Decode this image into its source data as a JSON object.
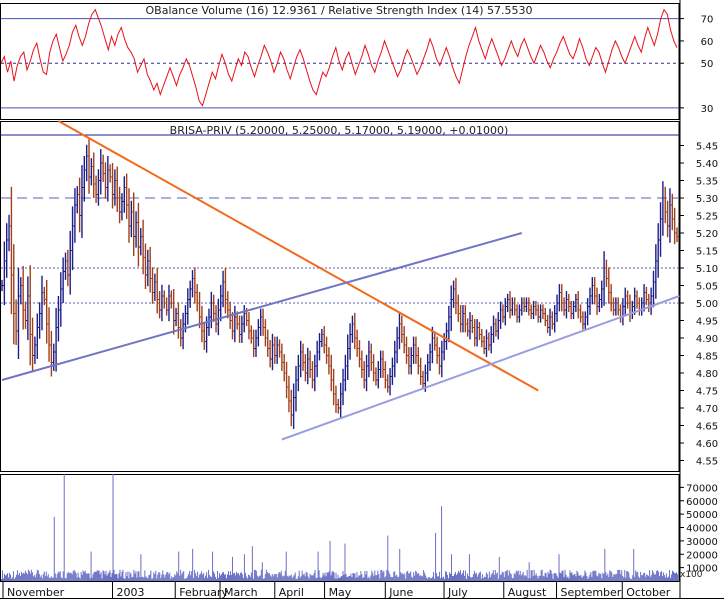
{
  "chart_data": [
    {
      "type": "line",
      "title": "OBalance Volume (16) 12.9361 / Relative Strength Index (14) 57.5530",
      "ylim": [
        25,
        77
      ],
      "yticks": [
        30,
        50,
        60,
        70
      ],
      "reference_lines": [
        {
          "y": 70,
          "style": "solid"
        },
        {
          "y": 50,
          "style": "dashed"
        },
        {
          "y": 30,
          "style": "solid"
        }
      ],
      "series": [
        {
          "color": "#e8101a",
          "values": [
            50,
            53,
            46,
            51,
            42,
            49,
            53,
            55,
            47,
            51,
            56,
            59,
            52,
            46,
            45,
            55,
            60,
            63,
            57,
            51,
            54,
            58,
            64,
            67,
            62,
            58,
            62,
            68,
            72,
            74,
            70,
            66,
            61,
            56,
            62,
            58,
            63,
            66,
            61,
            57,
            55,
            52,
            46,
            49,
            52,
            45,
            42,
            38,
            41,
            36,
            40,
            44,
            48,
            44,
            40,
            45,
            48,
            52,
            49,
            44,
            39,
            33,
            31,
            36,
            41,
            46,
            43,
            49,
            54,
            50,
            45,
            42,
            47,
            52,
            49,
            55,
            53,
            48,
            44,
            49,
            53,
            58,
            55,
            51,
            46,
            50,
            55,
            52,
            47,
            43,
            48,
            53,
            56,
            52,
            47,
            42,
            38,
            36,
            41,
            46,
            44,
            48,
            53,
            57,
            51,
            47,
            52,
            55,
            50,
            45,
            49,
            53,
            58,
            54,
            49,
            46,
            51,
            55,
            60,
            56,
            52,
            48,
            44,
            47,
            52,
            56,
            53,
            49,
            45,
            48,
            52,
            56,
            61,
            57,
            52,
            49,
            53,
            57,
            53,
            48,
            44,
            41,
            47,
            53,
            58,
            62,
            66,
            60,
            56,
            52,
            57,
            61,
            57,
            53,
            49,
            52,
            56,
            60,
            56,
            53,
            58,
            61,
            57,
            53,
            50,
            54,
            58,
            55,
            51,
            48,
            52,
            55,
            59,
            62,
            58,
            54,
            52,
            56,
            61,
            57,
            52,
            49,
            53,
            57,
            55,
            50,
            46,
            51,
            56,
            60,
            57,
            53,
            50,
            54,
            58,
            62,
            58,
            55,
            61,
            66,
            62,
            58,
            63,
            70,
            74,
            72,
            65,
            60,
            57
          ]
        }
      ]
    },
    {
      "type": "candlestick",
      "title": "BRISA-PRIV (5.20000, 5.25000, 5.17000, 5.19000, +0.01000)",
      "ylim": [
        4.52,
        5.52
      ],
      "yticks": [
        4.55,
        4.6,
        4.65,
        4.7,
        4.75,
        4.8,
        4.85,
        4.9,
        4.95,
        5.0,
        5.05,
        5.1,
        5.15,
        5.2,
        5.25,
        5.3,
        5.35,
        5.4,
        5.45
      ],
      "reference_lines": [
        {
          "y": 5.3,
          "style": "dashed"
        },
        {
          "y": 5.1,
          "style": "dotted"
        },
        {
          "y": 5.0,
          "style": "dotted"
        }
      ],
      "trendlines": [
        {
          "color": "#f26b1d",
          "from": {
            "bar": 24,
            "price": 5.52
          },
          "to": {
            "bar": 228,
            "price": 4.75
          }
        },
        {
          "color": "#6f74c4",
          "from": {
            "bar": 0,
            "price": 4.78
          },
          "to": {
            "bar": 221,
            "price": 5.2
          }
        },
        {
          "color": "#9a9ee0",
          "from": {
            "bar": 119,
            "price": 4.61
          },
          "to": {
            "bar": 288,
            "price": 5.02
          }
        }
      ],
      "colors": {
        "up": "#1c1f8a",
        "down": "#a0401b"
      },
      "closes": [
        5.05,
        5.12,
        5.18,
        5.22,
        5.08,
        4.97,
        4.92,
        5.02,
        5.05,
        4.98,
        4.95,
        5.02,
        4.91,
        4.85,
        4.88,
        4.93,
        4.97,
        5.03,
        5.01,
        4.94,
        4.88,
        4.83,
        4.86,
        4.93,
        4.98,
        5.04,
        5.09,
        5.12,
        5.08,
        5.15,
        5.22,
        5.28,
        5.31,
        5.25,
        5.33,
        5.38,
        5.42,
        5.36,
        5.39,
        5.34,
        5.31,
        5.35,
        5.4,
        5.37,
        5.33,
        5.38,
        5.36,
        5.31,
        5.35,
        5.3,
        5.26,
        5.29,
        5.33,
        5.28,
        5.22,
        5.26,
        5.19,
        5.23,
        5.16,
        5.19,
        5.13,
        5.08,
        5.12,
        5.07,
        5.03,
        5.06,
        5.01,
        4.98,
        5.02,
        5.0,
        4.98,
        5.02,
        5.0,
        4.95,
        4.97,
        4.93,
        4.9,
        4.94,
        4.97,
        5.01,
        5.04,
        5.07,
        5.03,
        5.0,
        4.96,
        4.92,
        4.89,
        4.93,
        4.96,
        5.0,
        4.97,
        4.94,
        4.98,
        5.02,
        5.06,
        5.01,
        4.98,
        4.95,
        4.92,
        4.96,
        4.94,
        4.91,
        4.94,
        4.97,
        4.95,
        4.92,
        4.9,
        4.87,
        4.9,
        4.93,
        4.96,
        4.93,
        4.9,
        4.87,
        4.84,
        4.88,
        4.85,
        4.88,
        4.86,
        4.83,
        4.8,
        4.76,
        4.72,
        4.68,
        4.73,
        4.78,
        4.82,
        4.86,
        4.83,
        4.8,
        4.84,
        4.81,
        4.78,
        4.82,
        4.86,
        4.89,
        4.91,
        4.88,
        4.85,
        4.82,
        4.78,
        4.74,
        4.71,
        4.7,
        4.74,
        4.78,
        4.82,
        4.87,
        4.91,
        4.94,
        4.9,
        4.87,
        4.84,
        4.81,
        4.78,
        4.82,
        4.86,
        4.83,
        4.8,
        4.78,
        4.81,
        4.84,
        4.81,
        4.78,
        4.76,
        4.79,
        4.82,
        4.86,
        4.9,
        4.94,
        4.91,
        4.88,
        4.85,
        4.82,
        4.85,
        4.88,
        4.85,
        4.82,
        4.79,
        4.77,
        4.8,
        4.83,
        4.86,
        4.9,
        4.88,
        4.85,
        4.82,
        4.86,
        4.89,
        4.92,
        4.96,
        5.01,
        5.04,
        5.0,
        4.97,
        4.94,
        4.97,
        4.94,
        4.92,
        4.95,
        4.93,
        4.9,
        4.93,
        4.91,
        4.89,
        4.87,
        4.9,
        4.88,
        4.91,
        4.94,
        4.92,
        4.95,
        4.98,
        4.96,
        4.99,
        5.01,
        4.98,
        5.0,
        4.98,
        4.96,
        4.98,
        5.0,
        4.99,
        5.0,
        4.98,
        4.97,
        4.99,
        4.98,
        4.96,
        4.98,
        4.97,
        4.95,
        4.93,
        4.96,
        4.94,
        4.97,
        5.0,
        5.03,
        5.0,
        4.98,
        5.01,
        4.99,
        4.97,
        4.99,
        5.01,
        4.98,
        4.96,
        4.94,
        4.96,
        4.99,
        5.02,
        5.05,
        5.02,
        4.99,
        5.01,
        5.04,
        5.1,
        5.07,
        5.03,
        5.0,
        4.98,
        5.0,
        4.98,
        4.96,
        4.99,
        5.02,
        5.0,
        4.97,
        4.99,
        5.02,
        5.0,
        4.98,
        5.0,
        5.03,
        5.01,
        4.99,
        5.02,
        5.06,
        5.12,
        5.18,
        5.24,
        5.3,
        5.26,
        5.22,
        5.28,
        5.24,
        5.2,
        5.19
      ]
    },
    {
      "type": "bar",
      "title": "Volume",
      "ylim": [
        0,
        80000
      ],
      "yticks": [
        10000,
        20000,
        30000,
        40000,
        50000,
        60000,
        70000
      ],
      "ytick_labels": [
        "10000",
        "20000",
        "30000",
        "40000",
        "50000",
        "60000",
        "70000"
      ],
      "axis_unit_label": "x100",
      "color": "#6a6fc4",
      "spikes": [
        {
          "bar": 53,
          "value": 48000
        },
        {
          "bar": 63,
          "value": 80000
        },
        {
          "bar": 90,
          "value": 22000
        },
        {
          "bar": 112,
          "value": 80000
        },
        {
          "bar": 140,
          "value": 20000
        },
        {
          "bar": 178,
          "value": 22000
        },
        {
          "bar": 192,
          "value": 24000
        },
        {
          "bar": 212,
          "value": 22000
        },
        {
          "bar": 232,
          "value": 18000
        },
        {
          "bar": 244,
          "value": 20000
        },
        {
          "bar": 252,
          "value": 26000
        },
        {
          "bar": 262,
          "value": 14000
        },
        {
          "bar": 286,
          "value": 22000
        },
        {
          "bar": 318,
          "value": 22000
        },
        {
          "bar": 330,
          "value": 30000
        },
        {
          "bar": 345,
          "value": 28000
        },
        {
          "bar": 388,
          "value": 34000
        },
        {
          "bar": 400,
          "value": 24000
        },
        {
          "bar": 436,
          "value": 36000
        },
        {
          "bar": 442,
          "value": 56000
        },
        {
          "bar": 452,
          "value": 20000
        },
        {
          "bar": 470,
          "value": 20000
        },
        {
          "bar": 500,
          "value": 18000
        },
        {
          "bar": 530,
          "value": 14000
        },
        {
          "bar": 560,
          "value": 20000
        },
        {
          "bar": 606,
          "value": 24000
        },
        {
          "bar": 635,
          "value": 24000
        }
      ]
    }
  ],
  "x_axis": {
    "month_labels": [
      {
        "label": "November",
        "bar": 2
      },
      {
        "label": "2003",
        "bar": 112
      },
      {
        "label": "February",
        "bar": 175
      },
      {
        "label": "March",
        "bar": 220
      },
      {
        "label": "April",
        "bar": 275
      },
      {
        "label": "May",
        "bar": 325
      },
      {
        "label": "June",
        "bar": 386
      },
      {
        "label": "July",
        "bar": 445
      },
      {
        "label": "August",
        "bar": 505
      },
      {
        "label": "September",
        "bar": 558
      },
      {
        "label": "October",
        "bar": 624
      }
    ]
  }
}
